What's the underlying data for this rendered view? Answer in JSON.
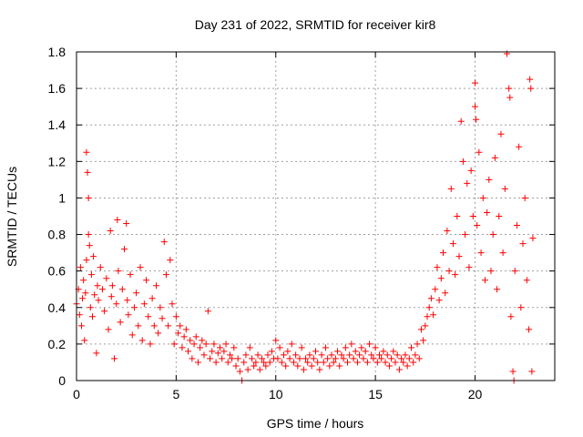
{
  "chart_data": {
    "type": "scatter",
    "title": "Day 231 of 2022, SRMTID for receiver kir8",
    "xlabel": "GPS time / hours",
    "ylabel": "SRMTID / TECUs",
    "xlim": [
      0,
      24
    ],
    "ylim": [
      0,
      1.8
    ],
    "xticks": [
      0,
      5,
      10,
      15,
      20
    ],
    "xtick_labels": [
      "0",
      "5",
      "10",
      "15",
      "20"
    ],
    "yticks": [
      0,
      0.2,
      0.4,
      0.6,
      0.8,
      1,
      1.2,
      1.4,
      1.6,
      1.8
    ],
    "ytick_labels": [
      "0",
      "0.2",
      "0.4",
      "0.6",
      "0.8",
      "1",
      "1.2",
      "1.4",
      "1.6",
      "1.8"
    ],
    "grid": true,
    "marker": "+",
    "color": "#ff0000",
    "series": [
      {
        "name": "SRMTID",
        "points": [
          [
            0.0,
            0.42
          ],
          [
            0.1,
            0.5
          ],
          [
            0.15,
            0.36
          ],
          [
            0.2,
            0.62
          ],
          [
            0.25,
            0.3
          ],
          [
            0.3,
            0.45
          ],
          [
            0.35,
            0.55
          ],
          [
            0.4,
            0.22
          ],
          [
            0.45,
            0.48
          ],
          [
            0.5,
            0.66
          ],
          [
            0.5,
            1.25
          ],
          [
            0.55,
            1.14
          ],
          [
            0.6,
            1.0
          ],
          [
            0.6,
            0.8
          ],
          [
            0.65,
            0.74
          ],
          [
            0.7,
            0.4
          ],
          [
            0.75,
            0.58
          ],
          [
            0.8,
            0.35
          ],
          [
            0.85,
            0.68
          ],
          [
            0.9,
            0.47
          ],
          [
            1.0,
            0.15
          ],
          [
            1.05,
            0.52
          ],
          [
            1.1,
            0.44
          ],
          [
            1.2,
            0.62
          ],
          [
            1.3,
            0.5
          ],
          [
            1.4,
            0.38
          ],
          [
            1.5,
            0.56
          ],
          [
            1.6,
            0.28
          ],
          [
            1.7,
            0.82
          ],
          [
            1.75,
            0.46
          ],
          [
            1.8,
            0.52
          ],
          [
            1.9,
            0.12
          ],
          [
            2.0,
            0.42
          ],
          [
            2.05,
            0.88
          ],
          [
            2.1,
            0.6
          ],
          [
            2.2,
            0.32
          ],
          [
            2.3,
            0.5
          ],
          [
            2.4,
            0.72
          ],
          [
            2.5,
            0.86
          ],
          [
            2.55,
            0.44
          ],
          [
            2.6,
            0.36
          ],
          [
            2.7,
            0.58
          ],
          [
            2.8,
            0.25
          ],
          [
            2.9,
            0.4
          ],
          [
            3.0,
            0.48
          ],
          [
            3.1,
            0.3
          ],
          [
            3.2,
            0.62
          ],
          [
            3.3,
            0.22
          ],
          [
            3.4,
            0.42
          ],
          [
            3.5,
            0.55
          ],
          [
            3.6,
            0.35
          ],
          [
            3.7,
            0.2
          ],
          [
            3.8,
            0.45
          ],
          [
            3.9,
            0.3
          ],
          [
            4.0,
            0.52
          ],
          [
            4.1,
            0.26
          ],
          [
            4.2,
            0.4
          ],
          [
            4.3,
            0.34
          ],
          [
            4.4,
            0.76
          ],
          [
            4.5,
            0.58
          ],
          [
            4.6,
            0.3
          ],
          [
            4.7,
            0.66
          ],
          [
            4.8,
            0.42
          ],
          [
            4.9,
            0.2
          ],
          [
            5.0,
            0.35
          ],
          [
            5.1,
            0.26
          ],
          [
            5.2,
            0.3
          ],
          [
            5.3,
            0.18
          ],
          [
            5.4,
            0.24
          ],
          [
            5.5,
            0.28
          ],
          [
            5.6,
            0.16
          ],
          [
            5.7,
            0.22
          ],
          [
            5.8,
            0.12
          ],
          [
            5.9,
            0.2
          ],
          [
            6.0,
            0.24
          ],
          [
            6.1,
            0.1
          ],
          [
            6.2,
            0.18
          ],
          [
            6.3,
            0.22
          ],
          [
            6.4,
            0.14
          ],
          [
            6.5,
            0.2
          ],
          [
            6.6,
            0.38
          ],
          [
            6.7,
            0.12
          ],
          [
            6.8,
            0.16
          ],
          [
            6.9,
            0.2
          ],
          [
            7.0,
            0.1
          ],
          [
            7.1,
            0.15
          ],
          [
            7.2,
            0.18
          ],
          [
            7.3,
            0.12
          ],
          [
            7.4,
            0.16
          ],
          [
            7.5,
            0.2
          ],
          [
            7.6,
            0.1
          ],
          [
            7.7,
            0.14
          ],
          [
            7.8,
            0.12
          ],
          [
            7.9,
            0.18
          ],
          [
            8.0,
            0.08
          ],
          [
            8.1,
            0.12
          ],
          [
            8.2,
            0.05
          ],
          [
            8.3,
            0.0
          ],
          [
            8.4,
            0.1
          ],
          [
            8.5,
            0.14
          ],
          [
            8.6,
            0.06
          ],
          [
            8.7,
            0.18
          ],
          [
            8.8,
            0.12
          ],
          [
            8.9,
            0.08
          ],
          [
            9.0,
            0.1
          ],
          [
            9.1,
            0.14
          ],
          [
            9.2,
            0.06
          ],
          [
            9.3,
            0.12
          ],
          [
            9.4,
            0.1
          ],
          [
            9.5,
            0.08
          ],
          [
            9.6,
            0.14
          ],
          [
            9.7,
            0.1
          ],
          [
            9.8,
            0.16
          ],
          [
            9.9,
            0.12
          ],
          [
            10.0,
            0.22
          ],
          [
            10.1,
            0.12
          ],
          [
            10.2,
            0.18
          ],
          [
            10.3,
            0.1
          ],
          [
            10.4,
            0.14
          ],
          [
            10.5,
            0.08
          ],
          [
            10.6,
            0.16
          ],
          [
            10.7,
            0.12
          ],
          [
            10.8,
            0.2
          ],
          [
            10.9,
            0.1
          ],
          [
            11.0,
            0.14
          ],
          [
            11.1,
            0.08
          ],
          [
            11.2,
            0.12
          ],
          [
            11.3,
            0.18
          ],
          [
            11.4,
            0.06
          ],
          [
            11.5,
            0.12
          ],
          [
            11.6,
            0.1
          ],
          [
            11.7,
            0.14
          ],
          [
            11.8,
            0.08
          ],
          [
            11.9,
            0.12
          ],
          [
            12.0,
            0.16
          ],
          [
            12.1,
            0.1
          ],
          [
            12.2,
            0.06
          ],
          [
            12.3,
            0.14
          ],
          [
            12.4,
            0.1
          ],
          [
            12.5,
            0.18
          ],
          [
            12.6,
            0.12
          ],
          [
            12.7,
            0.08
          ],
          [
            12.8,
            0.14
          ],
          [
            12.9,
            0.1
          ],
          [
            13.0,
            0.12
          ],
          [
            13.1,
            0.16
          ],
          [
            13.2,
            0.08
          ],
          [
            13.3,
            0.14
          ],
          [
            13.4,
            0.12
          ],
          [
            13.5,
            0.18
          ],
          [
            13.6,
            0.1
          ],
          [
            13.7,
            0.14
          ],
          [
            13.8,
            0.2
          ],
          [
            13.9,
            0.12
          ],
          [
            14.0,
            0.16
          ],
          [
            14.1,
            0.1
          ],
          [
            14.2,
            0.14
          ],
          [
            14.3,
            0.18
          ],
          [
            14.4,
            0.12
          ],
          [
            14.5,
            0.16
          ],
          [
            14.6,
            0.1
          ],
          [
            14.7,
            0.2
          ],
          [
            14.8,
            0.14
          ],
          [
            14.9,
            0.12
          ],
          [
            15.0,
            0.18
          ],
          [
            15.1,
            0.1
          ],
          [
            15.2,
            0.14
          ],
          [
            15.3,
            0.12
          ],
          [
            15.4,
            0.16
          ],
          [
            15.5,
            0.1
          ],
          [
            15.6,
            0.14
          ],
          [
            15.7,
            0.08
          ],
          [
            15.8,
            0.12
          ],
          [
            15.9,
            0.16
          ],
          [
            16.0,
            0.1
          ],
          [
            16.1,
            0.14
          ],
          [
            16.2,
            0.06
          ],
          [
            16.3,
            0.12
          ],
          [
            16.4,
            0.1
          ],
          [
            16.5,
            0.14
          ],
          [
            16.6,
            0.08
          ],
          [
            16.7,
            0.12
          ],
          [
            16.8,
            0.18
          ],
          [
            16.9,
            0.1
          ],
          [
            17.0,
            0.14
          ],
          [
            17.1,
            0.2
          ],
          [
            17.2,
            0.12
          ],
          [
            17.3,
            0.28
          ],
          [
            17.4,
            0.22
          ],
          [
            17.5,
            0.3
          ],
          [
            17.6,
            0.35
          ],
          [
            17.7,
            0.4
          ],
          [
            17.8,
            0.45
          ],
          [
            17.9,
            0.36
          ],
          [
            18.0,
            0.5
          ],
          [
            18.1,
            0.62
          ],
          [
            18.2,
            0.44
          ],
          [
            18.3,
            0.56
          ],
          [
            18.4,
            0.7
          ],
          [
            18.5,
            0.48
          ],
          [
            18.6,
            0.82
          ],
          [
            18.7,
            0.6
          ],
          [
            18.8,
            1.05
          ],
          [
            18.9,
            0.75
          ],
          [
            19.0,
            0.58
          ],
          [
            19.1,
            0.9
          ],
          [
            19.2,
            0.68
          ],
          [
            19.3,
            1.42
          ],
          [
            19.4,
            1.2
          ],
          [
            19.5,
            0.8
          ],
          [
            19.6,
            1.08
          ],
          [
            19.7,
            0.62
          ],
          [
            19.8,
            1.15
          ],
          [
            19.9,
            0.9
          ],
          [
            20.0,
            1.63
          ],
          [
            20.0,
            1.5
          ],
          [
            20.05,
            1.43
          ],
          [
            20.1,
            0.85
          ],
          [
            20.2,
            1.25
          ],
          [
            20.3,
            0.7
          ],
          [
            20.4,
            1.0
          ],
          [
            20.5,
            0.55
          ],
          [
            20.6,
            0.92
          ],
          [
            20.7,
            1.1
          ],
          [
            20.8,
            0.6
          ],
          [
            20.9,
            0.8
          ],
          [
            21.0,
            1.22
          ],
          [
            21.1,
            0.5
          ],
          [
            21.2,
            0.9
          ],
          [
            21.3,
            1.35
          ],
          [
            21.4,
            0.7
          ],
          [
            21.5,
            1.05
          ],
          [
            21.6,
            1.79
          ],
          [
            21.7,
            1.6
          ],
          [
            21.75,
            1.55
          ],
          [
            21.8,
            0.35
          ],
          [
            21.9,
            0.05
          ],
          [
            21.95,
            0.0
          ],
          [
            22.0,
            0.6
          ],
          [
            22.1,
            0.85
          ],
          [
            22.2,
            1.28
          ],
          [
            22.3,
            0.4
          ],
          [
            22.4,
            0.75
          ],
          [
            22.5,
            1.0
          ],
          [
            22.6,
            0.55
          ],
          [
            22.7,
            0.28
          ],
          [
            22.75,
            1.65
          ],
          [
            22.8,
            1.6
          ],
          [
            22.85,
            0.05
          ],
          [
            22.9,
            0.78
          ]
        ]
      }
    ]
  }
}
